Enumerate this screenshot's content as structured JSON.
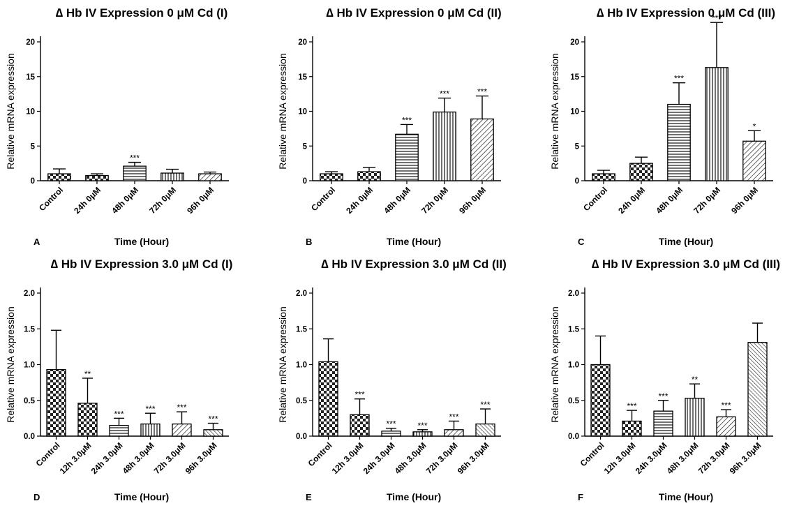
{
  "chart_data": [
    {
      "type": "bar",
      "panel_letter": "A",
      "title": "∆ Hb IV Expression 0 μM Cd (I)",
      "xlabel": "Time (Hour)",
      "ylabel": "Relative mRNA expression",
      "ylim": [
        0,
        20
      ],
      "yticks": [
        "0",
        "5",
        "10",
        "15",
        "20"
      ],
      "categories": [
        "Control",
        "24h 0μM",
        "48h 0μM",
        "72h 0μM",
        "96h 0μM"
      ],
      "values": [
        1.0,
        0.75,
        2.1,
        1.1,
        1.0
      ],
      "errors": [
        0.7,
        0.25,
        0.55,
        0.55,
        0.25
      ],
      "significance": [
        "",
        "",
        "***",
        "",
        ""
      ],
      "grid": false
    },
    {
      "type": "bar",
      "panel_letter": "B",
      "title": "∆ Hb IV Expression 0 μM Cd (II)",
      "xlabel": "Time (Hour)",
      "ylabel": "Relative mRNA expression",
      "ylim": [
        0,
        20
      ],
      "yticks": [
        "0",
        "5",
        "10",
        "15",
        "20"
      ],
      "categories": [
        "Control",
        "24h 0μM",
        "48h 0μM",
        "72h 0μM",
        "96h 0μM"
      ],
      "values": [
        1.0,
        1.3,
        6.7,
        9.9,
        8.9
      ],
      "errors": [
        0.3,
        0.6,
        1.4,
        2.0,
        3.3
      ],
      "significance": [
        "",
        "",
        "***",
        "***",
        "***"
      ],
      "grid": false
    },
    {
      "type": "bar",
      "panel_letter": "C",
      "title": "∆ Hb IV Expression 0 μM Cd (III)",
      "xlabel": "Time (Hour)",
      "ylabel": "Relative mRNA expression",
      "ylim": [
        0,
        20
      ],
      "yticks": [
        "0",
        "5",
        "10",
        "15",
        "20"
      ],
      "categories": [
        "Control",
        "24h 0μM",
        "48h 0μM",
        "72h 0μM",
        "96h 0μM"
      ],
      "values": [
        1.0,
        2.5,
        11.0,
        16.3,
        5.7
      ],
      "errors": [
        0.5,
        0.9,
        3.1,
        6.5,
        1.5
      ],
      "significance": [
        "",
        "",
        "***",
        "***",
        "*"
      ],
      "grid": false
    },
    {
      "type": "bar",
      "panel_letter": "D",
      "title": "∆ Hb IV Expression 3.0 μM Cd (I)",
      "xlabel": "Time (Hour)",
      "ylabel": "Relative mRNA expression",
      "ylim": [
        0,
        2.0
      ],
      "yticks": [
        "0.0",
        "0.5",
        "1.0",
        "1.5",
        "2.0"
      ],
      "categories": [
        "Control",
        "12h 3.0μM",
        "24h 3.0μM",
        "48h 3.0μM",
        "72h 3.0μM",
        "96h 3.0μM"
      ],
      "values": [
        0.93,
        0.46,
        0.15,
        0.17,
        0.17,
        0.09
      ],
      "errors": [
        0.55,
        0.35,
        0.1,
        0.15,
        0.17,
        0.09
      ],
      "significance": [
        "",
        "**",
        "***",
        "***",
        "***",
        "***"
      ],
      "grid": false
    },
    {
      "type": "bar",
      "panel_letter": "E",
      "title": "∆ Hb IV Expression 3.0 μM Cd (II)",
      "xlabel": "Time (Hour)",
      "ylabel": "Relative mRNA expression",
      "ylim": [
        0,
        2.0
      ],
      "yticks": [
        "0.0",
        "0.5",
        "1.0",
        "1.5",
        "2.0"
      ],
      "categories": [
        "Control",
        "12h 3.0μM",
        "24h 3.0μM",
        "48h 3.0μM",
        "72h 3.0μM",
        "96h 3.0μM"
      ],
      "values": [
        1.04,
        0.3,
        0.07,
        0.06,
        0.09,
        0.17
      ],
      "errors": [
        0.32,
        0.22,
        0.04,
        0.03,
        0.12,
        0.21
      ],
      "significance": [
        "",
        "***",
        "***",
        "***",
        "***",
        "***"
      ],
      "grid": false
    },
    {
      "type": "bar",
      "panel_letter": "F",
      "title": "∆ Hb IV Expression 3.0 μM Cd (III)",
      "xlabel": "Time (Hour)",
      "ylabel": "Relative mRNA expression",
      "ylim": [
        0,
        2.0
      ],
      "yticks": [
        "0.0",
        "0.5",
        "1.0",
        "1.5",
        "2.0"
      ],
      "categories": [
        "Control",
        "12h 3.0μM",
        "24h 3.0μM",
        "48h 3.0μM",
        "72h 3.0μM",
        "96h 3.0μM"
      ],
      "values": [
        1.0,
        0.21,
        0.35,
        0.53,
        0.27,
        1.31
      ],
      "errors": [
        0.4,
        0.15,
        0.15,
        0.2,
        0.1,
        0.27
      ],
      "significance": [
        "",
        "***",
        "***",
        "**",
        "***",
        ""
      ],
      "grid": false
    }
  ]
}
